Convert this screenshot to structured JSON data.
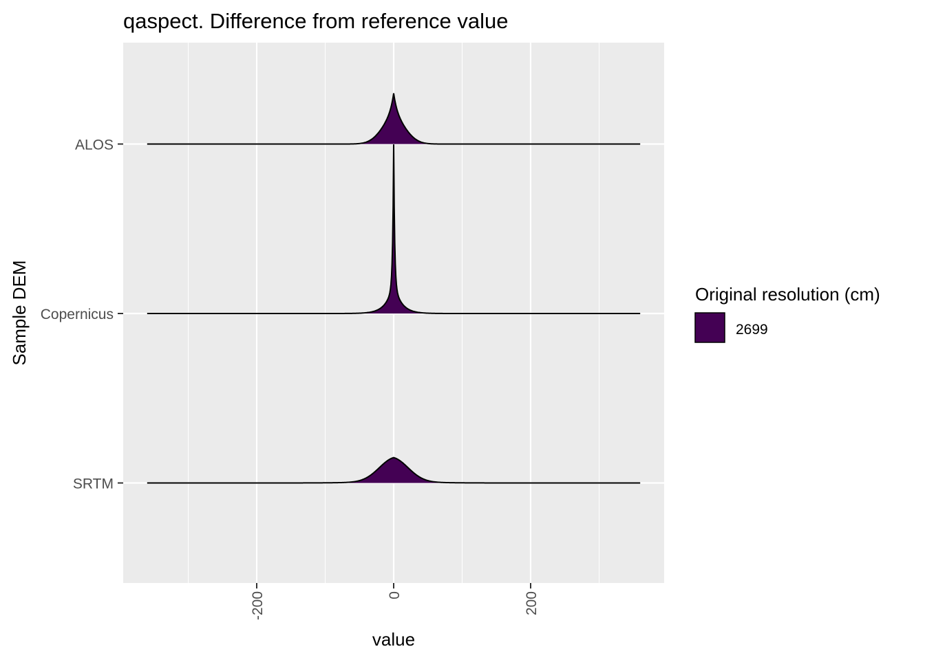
{
  "chart_data": {
    "type": "area",
    "subtype": "ridgeline",
    "title": "qaspect. Difference from reference value",
    "xlabel": "value",
    "ylabel": "Sample DEM",
    "xlim": [
      -395,
      395
    ],
    "x_ticks": [
      -200,
      0,
      200
    ],
    "x_tick_labels": [
      "-200",
      "0",
      "200"
    ],
    "x_tick_rotation": -90,
    "categories": [
      "ALOS",
      "Copernicus",
      "SRTM"
    ],
    "grid": true,
    "fill_color": "#440154",
    "outline_color": "#000000",
    "panel_color": "#ebebeb",
    "legend": {
      "title": "Original resolution (cm)",
      "position": "right",
      "entries": [
        {
          "label": "2699",
          "color": "#440154"
        }
      ]
    },
    "density_range": [
      -360,
      360
    ],
    "density_peaks": [
      {
        "category": "ALOS",
        "center": 0,
        "relative_height": 0.3
      },
      {
        "category": "Copernicus",
        "center": 0,
        "relative_height": 1.0
      },
      {
        "category": "SRTM",
        "center": 0,
        "relative_height": 0.15
      }
    ]
  }
}
